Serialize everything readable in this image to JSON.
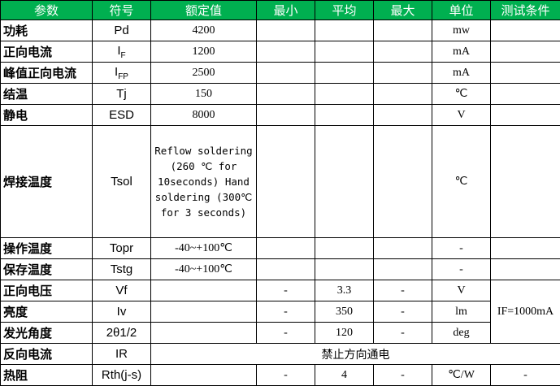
{
  "header_color": "#00b050",
  "columns": [
    "参数",
    "符号",
    "额定值",
    "最小",
    "平均",
    "最大",
    "单位",
    "测试条件"
  ],
  "rows": [
    {
      "param": "功耗",
      "symbol": "Pd",
      "rated": "4200",
      "min": "",
      "typ": "",
      "max": "",
      "unit": "mw",
      "cond": ""
    },
    {
      "param": "正向电流",
      "symbol": "I",
      "symbol_sub": "F",
      "rated": "1200",
      "min": "",
      "typ": "",
      "max": "",
      "unit": "mA",
      "cond": ""
    },
    {
      "param": "峰值正向电流",
      "symbol": "I",
      "symbol_sub": "FP",
      "rated": "2500",
      "min": "",
      "typ": "",
      "max": "",
      "unit": "mA",
      "cond": ""
    },
    {
      "param": "结温",
      "symbol": "Tj",
      "rated": "150",
      "min": "",
      "typ": "",
      "max": "",
      "unit": "℃",
      "cond": ""
    },
    {
      "param": "静电",
      "symbol": "ESD",
      "rated": "8000",
      "min": "",
      "typ": "",
      "max": "",
      "unit": "V",
      "cond": ""
    },
    {
      "param": "焊接温度",
      "symbol": "Tsol",
      "rated": "Reflow soldering (260 ℃ for 10seconds) Hand soldering (300℃ for 3 seconds)",
      "min": "",
      "typ": "",
      "max": "",
      "unit": "℃",
      "cond": ""
    },
    {
      "param": "操作温度",
      "symbol": "Topr",
      "rated": "-40~+100℃",
      "min": "",
      "typ": "",
      "max": "",
      "unit": "-",
      "cond": ""
    },
    {
      "param": "保存温度",
      "symbol": "Tstg",
      "rated": "-40~+100℃",
      "min": "",
      "typ": "",
      "max": "",
      "unit": "-",
      "cond": ""
    },
    {
      "param": "正向电压",
      "symbol": "Vf",
      "rated": "",
      "min": "-",
      "typ": "3.3",
      "max": "-",
      "unit": "V",
      "cond": "IF=1000mA"
    },
    {
      "param": "亮度",
      "symbol": "Iv",
      "rated": "",
      "min": "-",
      "typ": "350",
      "max": "-",
      "unit": "lm"
    },
    {
      "param": "发光角度",
      "symbol": "2θ1/2",
      "rated": "",
      "min": "-",
      "typ": "120",
      "max": "-",
      "unit": "deg"
    },
    {
      "param": "反向电流",
      "symbol": "IR",
      "note": "禁止方向通电"
    },
    {
      "param": "热阻",
      "symbol": "Rth(j-s)",
      "rated": "",
      "min": "-",
      "typ": "4",
      "max": "-",
      "unit": "℃/W",
      "cond": "-"
    }
  ]
}
